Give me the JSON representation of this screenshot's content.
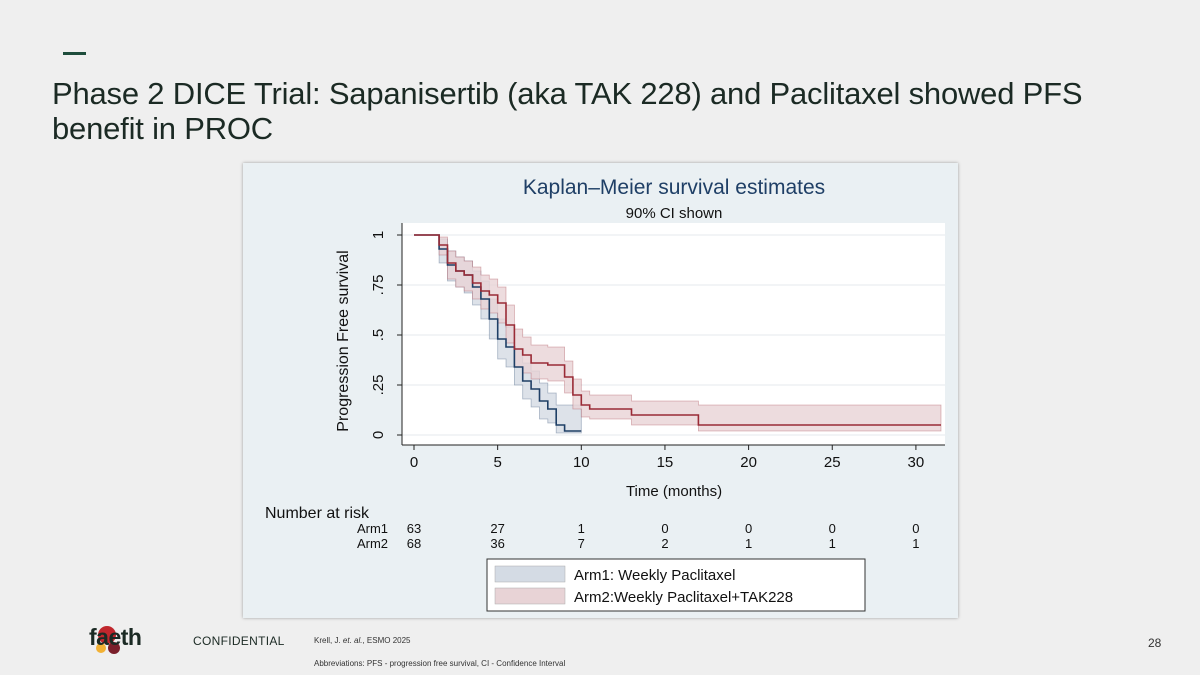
{
  "slide": {
    "title": "Phase 2 DICE Trial: Sapanisertib (aka TAK 228) and Paclitaxel showed PFS benefit in PROC",
    "confidential": "CONFIDENTIAL",
    "brand": "faeth",
    "citation_prefix": "Krell, J. ",
    "citation_italic": "et. al.",
    "citation_suffix": ", ESMO 2025",
    "abbreviations": "Abbreviations: PFS - progression free survival, CI - Confidence Interval",
    "page_number": "28",
    "colors": {
      "accent": "#1e4d3c",
      "brand_red": "#c0272d",
      "brand_yellow": "#f2b134",
      "brand_dark": "#7a1f2b"
    }
  },
  "chart_data": {
    "type": "line",
    "title": "Kaplan–Meier survival estimates",
    "subtitle": "90% CI shown",
    "xlabel": "Time (months)",
    "ylabel": "Progression Free survival",
    "xlim": [
      0,
      31.5
    ],
    "ylim": [
      0,
      1
    ],
    "xticks": [
      0,
      5,
      10,
      15,
      20,
      25,
      30
    ],
    "yticks": [
      0,
      0.25,
      0.5,
      0.75,
      1
    ],
    "ytick_labels": [
      "0",
      ".25",
      ".5",
      ".75",
      "1"
    ],
    "grid": true,
    "legend_position": "bottom",
    "series": [
      {
        "name": "Arm1: Weekly Paclitaxel",
        "color": "#1f3f66",
        "band_color": "#d4dbe4",
        "x": [
          0,
          1,
          1.5,
          2,
          2.5,
          3,
          3.5,
          4,
          4.5,
          5,
          5.5,
          6,
          6.5,
          7,
          7.5,
          8,
          8.5,
          9,
          10
        ],
        "y": [
          1,
          1,
          0.93,
          0.85,
          0.82,
          0.8,
          0.74,
          0.68,
          0.58,
          0.48,
          0.44,
          0.34,
          0.27,
          0.23,
          0.17,
          0.13,
          0.05,
          0.02,
          0.02
        ],
        "lower": [
          1,
          1,
          0.86,
          0.77,
          0.74,
          0.71,
          0.65,
          0.58,
          0.48,
          0.38,
          0.34,
          0.25,
          0.18,
          0.14,
          0.08,
          0.06,
          0.01,
          0.01,
          0.01
        ],
        "upper": [
          1,
          1,
          0.98,
          0.92,
          0.89,
          0.87,
          0.82,
          0.77,
          0.68,
          0.58,
          0.54,
          0.43,
          0.36,
          0.32,
          0.26,
          0.21,
          0.15,
          0.15,
          0.15
        ]
      },
      {
        "name": "Arm2:Weekly Paclitaxel+TAK228",
        "color": "#9a2b36",
        "band_color": "#e8d3d6",
        "x": [
          0,
          1,
          1.5,
          2,
          2.5,
          3,
          3.5,
          4,
          4.5,
          5,
          5.5,
          6,
          6.5,
          7,
          8,
          9,
          9.5,
          10,
          10.5,
          13,
          17,
          31.5
        ],
        "y": [
          1,
          1,
          0.95,
          0.86,
          0.82,
          0.8,
          0.76,
          0.72,
          0.7,
          0.66,
          0.55,
          0.43,
          0.4,
          0.36,
          0.35,
          0.29,
          0.2,
          0.15,
          0.13,
          0.1,
          0.05,
          0.05
        ],
        "lower": [
          1,
          1,
          0.9,
          0.78,
          0.74,
          0.72,
          0.68,
          0.63,
          0.61,
          0.56,
          0.46,
          0.34,
          0.31,
          0.28,
          0.27,
          0.21,
          0.13,
          0.09,
          0.08,
          0.05,
          0.02,
          0.02
        ],
        "upper": [
          1,
          1,
          0.99,
          0.92,
          0.89,
          0.87,
          0.84,
          0.8,
          0.78,
          0.74,
          0.65,
          0.53,
          0.49,
          0.45,
          0.44,
          0.37,
          0.28,
          0.22,
          0.2,
          0.17,
          0.15,
          0.15
        ]
      }
    ],
    "risk_table": {
      "title": "Number at risk",
      "times": [
        0,
        5,
        10,
        15,
        20,
        25,
        30
      ],
      "rows": [
        {
          "label": "Arm1",
          "counts": [
            "63",
            "27",
            "1",
            "0",
            "0",
            "0",
            "0"
          ]
        },
        {
          "label": "Arm2",
          "counts": [
            "68",
            "36",
            "7",
            "2",
            "1",
            "1",
            "1"
          ]
        }
      ]
    }
  }
}
